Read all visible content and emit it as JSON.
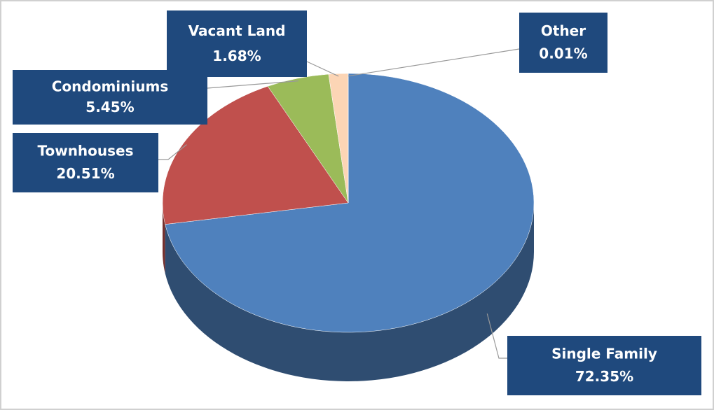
{
  "chart_data": {
    "type": "pie",
    "categories": [
      "Single Family",
      "Townhouses",
      "Condominiums",
      "Vacant Land",
      "Other"
    ],
    "values": [
      72.35,
      20.51,
      5.45,
      1.68,
      0.01
    ],
    "value_labels": [
      "72.35%",
      "20.51%",
      "5.45%",
      "1.68%",
      "0.01%"
    ],
    "colors": [
      "#4f81bd",
      "#c0504d",
      "#9bbb59",
      "#fcd5b5",
      "#8064a2"
    ]
  }
}
